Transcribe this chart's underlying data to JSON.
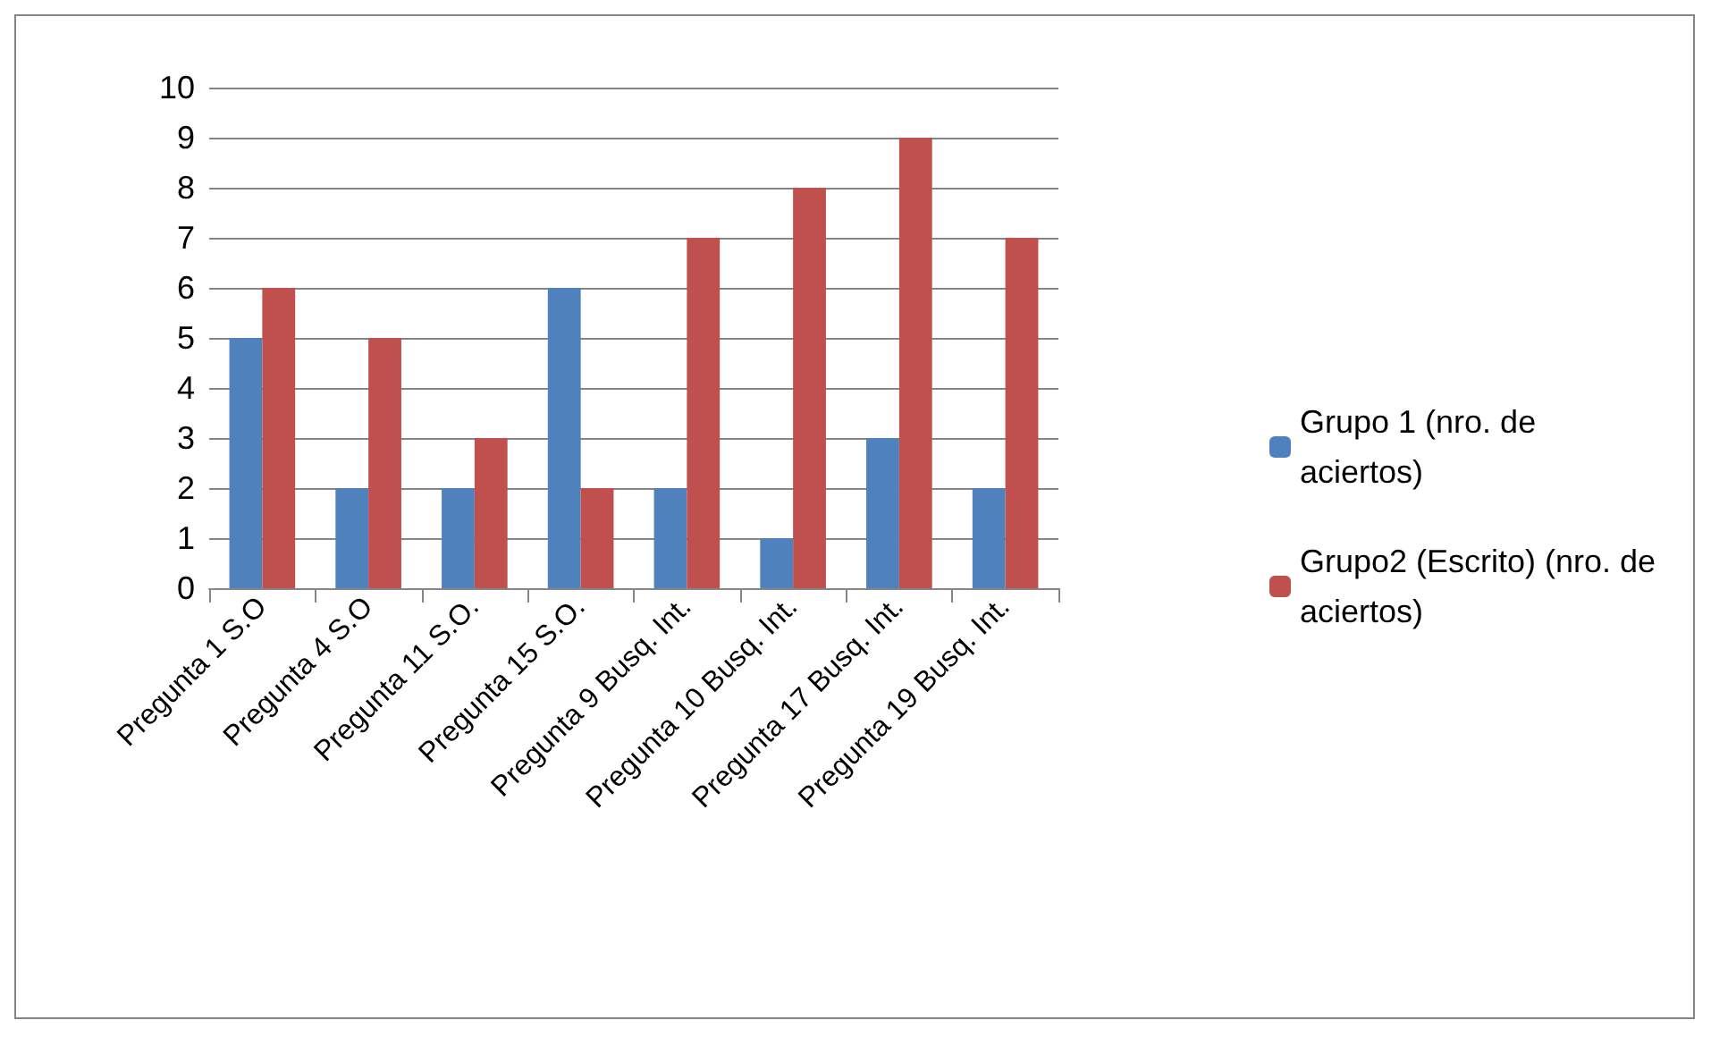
{
  "chart_data": {
    "type": "bar",
    "categories": [
      "Pregunta 1 S.O",
      "Pregunta 4 S.O",
      "Pregunta 11 S.O.",
      "Pregunta 15 S.O.",
      "Pregunta 9 Busq. Int.",
      "Pregunta 10 Busq. Int.",
      "Pregunta 17 Busq. Int.",
      "Pregunta 19 Busq. Int."
    ],
    "series": [
      {
        "name": "Grupo 1 (nro. de aciertos)",
        "color": "#4f81bd",
        "values": [
          5,
          2,
          2,
          6,
          2,
          1,
          3,
          2
        ]
      },
      {
        "name": "Grupo2 (Escrito) (nro. de aciertos)",
        "color": "#c0504d",
        "values": [
          6,
          5,
          3,
          2,
          7,
          8,
          9,
          7
        ]
      }
    ],
    "ylim": [
      0,
      10
    ],
    "yticks": [
      0,
      1,
      2,
      3,
      4,
      5,
      6,
      7,
      8,
      9,
      10
    ],
    "grid": "y",
    "legend": "right"
  }
}
